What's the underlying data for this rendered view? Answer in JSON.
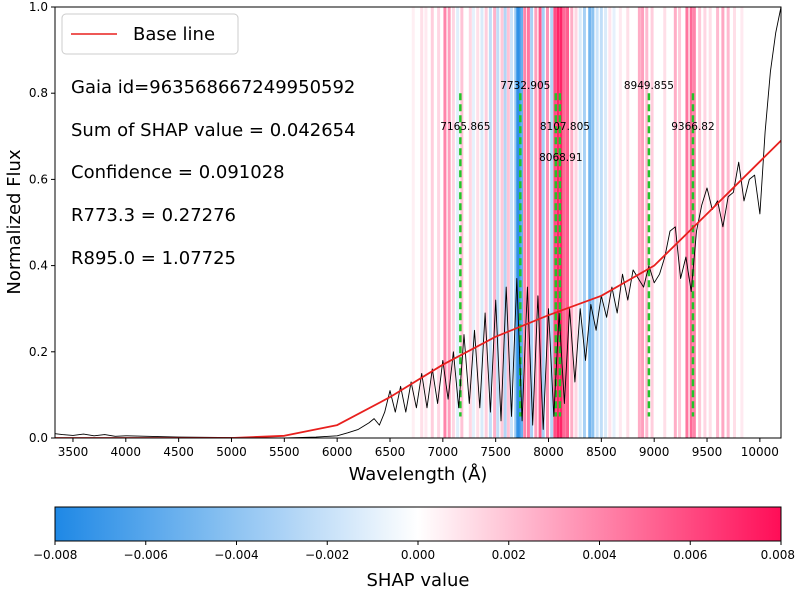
{
  "chart_data": {
    "type": "line",
    "xlabel": "Wavelength (Å)",
    "ylabel": "Normalized Flux",
    "xlim": [
      3330,
      10200
    ],
    "ylim": [
      0,
      1.0
    ],
    "xticks": [
      3500,
      4000,
      4500,
      5000,
      5500,
      6000,
      6500,
      7000,
      7500,
      8000,
      8500,
      9000,
      9500,
      10000
    ],
    "yticks": [
      0.0,
      0.2,
      0.4,
      0.6,
      0.8,
      1.0
    ],
    "ytick_labels": [
      "0.0",
      "0.2",
      "0.4",
      "0.6",
      "0.8",
      "1.0"
    ],
    "grid": false,
    "legend": {
      "position": "top-left",
      "entries": [
        {
          "label": "Base line",
          "color": "#e8201e"
        }
      ]
    },
    "annotations": [
      "Gaia id=963568667249950592",
      "Sum of SHAP value = 0.042654",
      "Confidence = 0.091028",
      "R773.3 = 0.27276",
      "R895.0 = 1.07725"
    ],
    "series": [
      {
        "name": "Base line",
        "color": "#e8201e",
        "x": [
          3330,
          4500,
          5000,
          5500,
          6000,
          6500,
          7000,
          7500,
          8000,
          8500,
          9000,
          9500,
          10200
        ],
        "y": [
          0.0,
          0.0,
          0.0,
          0.005,
          0.03,
          0.095,
          0.17,
          0.235,
          0.285,
          0.33,
          0.4,
          0.52,
          0.69
        ]
      },
      {
        "color": "#000000",
        "x": [
          3330,
          3400,
          3500,
          3600,
          3700,
          3800,
          3900,
          4000,
          4500,
          5000,
          5500,
          5800,
          6000,
          6100,
          6200,
          6300,
          6350,
          6400,
          6450,
          6500,
          6550,
          6600,
          6650,
          6700,
          6750,
          6800,
          6850,
          6900,
          6950,
          7000,
          7050,
          7100,
          7150,
          7200,
          7250,
          7300,
          7350,
          7400,
          7450,
          7500,
          7550,
          7600,
          7650,
          7700,
          7750,
          7800,
          7850,
          7900,
          7950,
          8000,
          8050,
          8100,
          8150,
          8200,
          8250,
          8300,
          8350,
          8400,
          8450,
          8500,
          8550,
          8600,
          8650,
          8700,
          8750,
          8800,
          8850,
          8900,
          8950,
          9000,
          9050,
          9100,
          9150,
          9200,
          9250,
          9300,
          9350,
          9400,
          9450,
          9500,
          9550,
          9600,
          9650,
          9700,
          9750,
          9800,
          9850,
          9900,
          9950,
          10000,
          10050,
          10100,
          10150,
          10200
        ],
        "y": [
          0.01,
          0.008,
          0.006,
          0.009,
          0.005,
          0.008,
          0.004,
          0.005,
          0.002,
          0.001,
          0.0,
          0.002,
          0.005,
          0.012,
          0.02,
          0.035,
          0.045,
          0.03,
          0.06,
          0.11,
          0.06,
          0.12,
          0.06,
          0.13,
          0.07,
          0.15,
          0.07,
          0.16,
          0.08,
          0.18,
          0.09,
          0.2,
          0.07,
          0.24,
          0.08,
          0.25,
          0.07,
          0.29,
          0.06,
          0.32,
          0.04,
          0.35,
          0.05,
          0.37,
          0.04,
          0.35,
          0.03,
          0.33,
          0.02,
          0.3,
          0.05,
          0.29,
          0.08,
          0.3,
          0.13,
          0.3,
          0.18,
          0.31,
          0.25,
          0.33,
          0.28,
          0.35,
          0.29,
          0.38,
          0.32,
          0.39,
          0.37,
          0.35,
          0.4,
          0.36,
          0.38,
          0.42,
          0.48,
          0.49,
          0.37,
          0.42,
          0.34,
          0.48,
          0.54,
          0.58,
          0.53,
          0.55,
          0.49,
          0.56,
          0.57,
          0.64,
          0.55,
          0.6,
          0.61,
          0.52,
          0.71,
          0.85,
          0.94,
          1.0
        ]
      }
    ],
    "vlines": [
      {
        "x": 7165.865,
        "label": "7165.865"
      },
      {
        "x": 7732.905,
        "label": "7732.905"
      },
      {
        "x": 8068.91,
        "label": "8068.91"
      },
      {
        "x": 8107.805,
        "label": "8107.805"
      },
      {
        "x": 8949.855,
        "label": "8949.855"
      },
      {
        "x": 9366.82,
        "label": "9366.82"
      }
    ],
    "vline_color": "#22c42a",
    "shap_bands": [
      {
        "x": 6720,
        "value": 0.0006
      },
      {
        "x": 6800,
        "value": 0.0012
      },
      {
        "x": 6840,
        "value": 0.0008
      },
      {
        "x": 6900,
        "value": 0.0018
      },
      {
        "x": 6960,
        "value": 0.0015
      },
      {
        "x": 7020,
        "value": 0.0045
      },
      {
        "x": 7060,
        "value": 0.0035
      },
      {
        "x": 7100,
        "value": 0.0015
      },
      {
        "x": 7140,
        "value": -0.0012
      },
      {
        "x": 7180,
        "value": 0.0022
      },
      {
        "x": 7260,
        "value": 0.0015
      },
      {
        "x": 7290,
        "value": -0.001
      },
      {
        "x": 7330,
        "value": 0.0012
      },
      {
        "x": 7370,
        "value": -0.0015
      },
      {
        "x": 7410,
        "value": 0.0018
      },
      {
        "x": 7450,
        "value": -0.0025
      },
      {
        "x": 7490,
        "value": 0.0028
      },
      {
        "x": 7520,
        "value": -0.0025
      },
      {
        "x": 7560,
        "value": 0.002
      },
      {
        "x": 7590,
        "value": -0.003
      },
      {
        "x": 7620,
        "value": 0.0022
      },
      {
        "x": 7650,
        "value": -0.002
      },
      {
        "x": 7690,
        "value": -0.004
      },
      {
        "x": 7710,
        "value": -0.008
      },
      {
        "x": 7725,
        "value": -0.0075
      },
      {
        "x": 7745,
        "value": -0.006
      },
      {
        "x": 7775,
        "value": 0.0045
      },
      {
        "x": 7810,
        "value": 0.005
      },
      {
        "x": 7840,
        "value": -0.0035
      },
      {
        "x": 7880,
        "value": 0.0035
      },
      {
        "x": 7920,
        "value": 0.006
      },
      {
        "x": 7950,
        "value": -0.0035
      },
      {
        "x": 7990,
        "value": 0.004
      },
      {
        "x": 8030,
        "value": -0.003
      },
      {
        "x": 8060,
        "value": 0.0065
      },
      {
        "x": 8090,
        "value": 0.008
      },
      {
        "x": 8120,
        "value": 0.008
      },
      {
        "x": 8150,
        "value": 0.0055
      },
      {
        "x": 8180,
        "value": 0.006
      },
      {
        "x": 8220,
        "value": 0.003
      },
      {
        "x": 8260,
        "value": 0.0015
      },
      {
        "x": 8300,
        "value": -0.0015
      },
      {
        "x": 8340,
        "value": -0.0035
      },
      {
        "x": 8390,
        "value": -0.0055
      },
      {
        "x": 8420,
        "value": -0.0045
      },
      {
        "x": 8460,
        "value": -0.002
      },
      {
        "x": 8500,
        "value": -0.0025
      },
      {
        "x": 8540,
        "value": -0.0015
      },
      {
        "x": 8580,
        "value": 0.001
      },
      {
        "x": 8620,
        "value": -0.001
      },
      {
        "x": 8680,
        "value": 0.0008
      },
      {
        "x": 8750,
        "value": 0.0012
      },
      {
        "x": 8860,
        "value": 0.003
      },
      {
        "x": 8890,
        "value": 0.0035
      },
      {
        "x": 8930,
        "value": 0.0025
      },
      {
        "x": 8980,
        "value": 0.0018
      },
      {
        "x": 9100,
        "value": 0.0012
      },
      {
        "x": 9200,
        "value": 0.003
      },
      {
        "x": 9240,
        "value": 0.002
      },
      {
        "x": 9310,
        "value": 0.005
      },
      {
        "x": 9350,
        "value": 0.0055
      },
      {
        "x": 9380,
        "value": 0.0045
      },
      {
        "x": 9430,
        "value": 0.002
      },
      {
        "x": 9480,
        "value": 0.0015
      },
      {
        "x": 9530,
        "value": 0.0012
      },
      {
        "x": 9600,
        "value": 0.0025
      },
      {
        "x": 9650,
        "value": 0.0032
      },
      {
        "x": 9700,
        "value": 0.0025
      },
      {
        "x": 9760,
        "value": 0.0012
      },
      {
        "x": 9830,
        "value": 0.0008
      }
    ],
    "colorbar": {
      "label": "SHAP value",
      "range": [
        -0.008,
        0.008
      ],
      "ticks": [
        -0.008,
        -0.006,
        -0.004,
        -0.002,
        0.0,
        0.002,
        0.004,
        0.006,
        0.008
      ],
      "tick_labels": [
        "−0.008",
        "−0.006",
        "−0.004",
        "−0.002",
        "0.000",
        "0.002",
        "0.004",
        "0.006",
        "0.008"
      ],
      "colors": {
        "negative": "#1e88e5",
        "zero": "#ffffff",
        "positive": "#ff0d57"
      }
    }
  }
}
